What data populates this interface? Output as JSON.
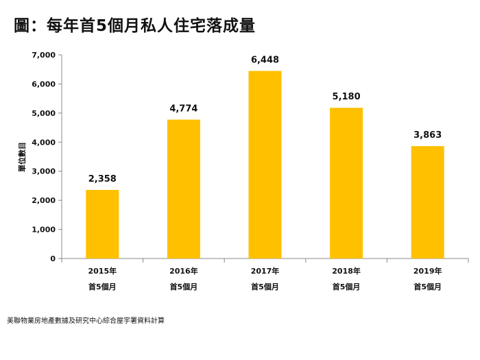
{
  "title": "圖：每年首5個月私人住宅落成量",
  "source": "美聯物業房地產數據及研究中心綜合屋宇署資料計算",
  "chart_data": {
    "type": "bar",
    "categories": [
      [
        "2015年",
        "首5個月"
      ],
      [
        "2016年",
        "首5個月"
      ],
      [
        "2017年",
        "首5個月"
      ],
      [
        "2018年",
        "首5個月"
      ],
      [
        "2019年",
        "首5個月"
      ]
    ],
    "values": [
      2358,
      4774,
      6448,
      5180,
      3863
    ],
    "data_labels": [
      "2,358",
      "4,774",
      "6,448",
      "5,180",
      "3,863"
    ],
    "ylabel": "單位數目",
    "xlabel": "",
    "ylim": [
      0,
      7000
    ],
    "yticks": [
      0,
      1000,
      2000,
      3000,
      4000,
      5000,
      6000,
      7000
    ],
    "ytick_labels": [
      "0",
      "1,000",
      "2,000",
      "3,000",
      "4,000",
      "5,000",
      "6,000",
      "7,000"
    ],
    "grid": false,
    "bar_color": "#FFC000"
  }
}
